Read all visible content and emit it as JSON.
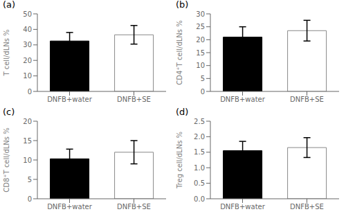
{
  "chart_data": [
    {
      "type": "bar",
      "title": "(a)",
      "ylabel": "T cell/dLNs %",
      "categories": [
        "DNFB+water",
        "DNFB+SE"
      ],
      "values": [
        32.5,
        36.5
      ],
      "errors": [
        5.5,
        6.0
      ],
      "colors": [
        "#000000",
        "#ffffff"
      ],
      "edgecolors": [
        "#000000",
        "#888888"
      ],
      "ylim": [
        0,
        50
      ],
      "yticks": [
        0,
        10,
        20,
        30,
        40,
        50
      ],
      "grid": false
    },
    {
      "type": "bar",
      "title": "(b)",
      "ylabel": "CD4⁺T cell/dLNs %",
      "categories": [
        "DNFB+water",
        "DNFB+SE"
      ],
      "values": [
        21.0,
        23.5
      ],
      "errors": [
        4.0,
        4.0
      ],
      "colors": [
        "#000000",
        "#ffffff"
      ],
      "edgecolors": [
        "#000000",
        "#888888"
      ],
      "ylim": [
        0,
        30
      ],
      "yticks": [
        0,
        5,
        10,
        15,
        20,
        25,
        30
      ],
      "grid": false
    },
    {
      "type": "bar",
      "title": "(c)",
      "ylabel": "CD8⁺T cell/dLNs %",
      "categories": [
        "DNFB+water",
        "DNFB+SE"
      ],
      "values": [
        10.3,
        12.0
      ],
      "errors": [
        2.5,
        3.0
      ],
      "colors": [
        "#000000",
        "#ffffff"
      ],
      "edgecolors": [
        "#000000",
        "#888888"
      ],
      "ylim": [
        0,
        20
      ],
      "yticks": [
        0,
        5,
        10,
        15,
        20
      ],
      "grid": false
    },
    {
      "type": "bar",
      "title": "(d)",
      "ylabel": "Treg cell/dLNs %",
      "categories": [
        "DNFB+water",
        "DNFB+SE"
      ],
      "values": [
        1.55,
        1.65
      ],
      "errors": [
        0.3,
        0.32
      ],
      "colors": [
        "#000000",
        "#ffffff"
      ],
      "edgecolors": [
        "#000000",
        "#888888"
      ],
      "ylim": [
        0,
        2.5
      ],
      "yticks": [
        {
          "value": 0,
          "label": "0.0"
        },
        0.5,
        {
          "value": 1,
          "label": "1.0"
        },
        1.5,
        {
          "value": 2,
          "label": "2.0"
        },
        2.5
      ],
      "grid": false
    }
  ]
}
